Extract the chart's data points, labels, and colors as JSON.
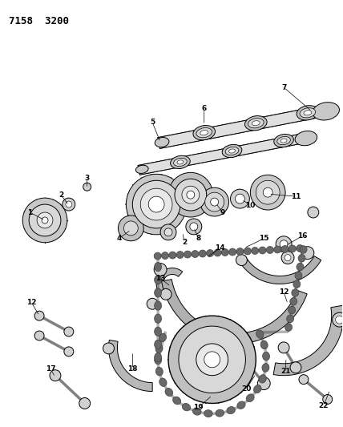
{
  "title": "7158  3200",
  "bg": "#ffffff",
  "fg": "#000000",
  "fig_w": 4.28,
  "fig_h": 5.33,
  "dpi": 100,
  "shaft_color": "#c8c8c8",
  "chain_color": "#505050",
  "guide_color": "#888888"
}
